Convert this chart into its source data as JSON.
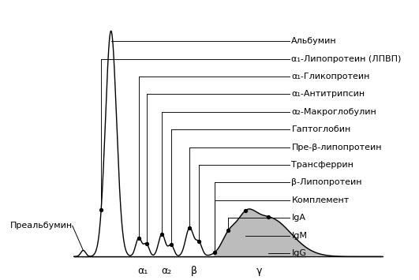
{
  "background_color": "#ffffff",
  "labels": [
    "Альбумин",
    "α₁-Липопротеин (ЛПВП)",
    "α₁-Гликопротеин",
    "α₁-Антитрипсин",
    "α₂-Макроглобулин",
    "Гаптоглобин",
    "Пре-β-липопротеин",
    "Трансферрин",
    "β-Липопротеин",
    "Комплемент",
    "IgA",
    "IgM",
    "IgG"
  ],
  "x_tick_labels": [
    "α₁",
    "α₂",
    "β",
    "γ"
  ],
  "prealbumin_label": "Преальбумин",
  "line_color": "#000000",
  "fill_color": "#999999",
  "font_size": 8,
  "label_font_size": 8
}
